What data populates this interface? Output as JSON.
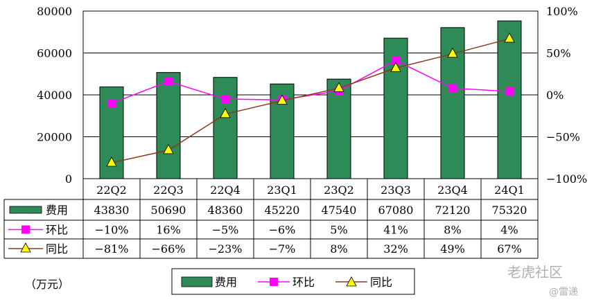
{
  "chart_data": {
    "type": "bar",
    "categories": [
      "22Q2",
      "22Q3",
      "22Q4",
      "23Q1",
      "23Q2",
      "23Q3",
      "23Q4",
      "24Q1"
    ],
    "unit": "（万元）",
    "series": [
      {
        "name": "费用",
        "kind": "bar",
        "axis": "left",
        "color": "#2e8b57",
        "values": [
          43830,
          50690,
          48360,
          45220,
          47540,
          67080,
          72120,
          75320
        ]
      },
      {
        "name": "环比",
        "kind": "line",
        "axis": "right",
        "color": "#ff00ff",
        "marker": "square",
        "values": [
          -10,
          16,
          -5,
          -6,
          5,
          41,
          8,
          4
        ],
        "labels": [
          "−10%",
          "16%",
          "−5%",
          "−6%",
          "5%",
          "41%",
          "8%",
          "4%"
        ]
      },
      {
        "name": "同比",
        "kind": "line",
        "axis": "right",
        "color": "#8b3a1a",
        "marker": "triangle",
        "marker_color": "#ffff00",
        "values": [
          -81,
          -66,
          -23,
          -7,
          8,
          32,
          49,
          67
        ],
        "labels": [
          "−81%",
          "−66%",
          "−23%",
          "−7%",
          "8%",
          "32%",
          "49%",
          "67%"
        ]
      }
    ],
    "left_axis": {
      "min": 0,
      "max": 80000,
      "ticks": [
        "0",
        "20000",
        "40000",
        "60000",
        "80000"
      ]
    },
    "right_axis": {
      "min": -100,
      "max": 100,
      "ticks": [
        "−100%",
        "−50%",
        "0%",
        "50%",
        "100%"
      ]
    },
    "grid": true,
    "legend_position": "bottom",
    "data_table": true
  },
  "watermark": {
    "brand": "老虎社区",
    "user": "@雷递"
  }
}
